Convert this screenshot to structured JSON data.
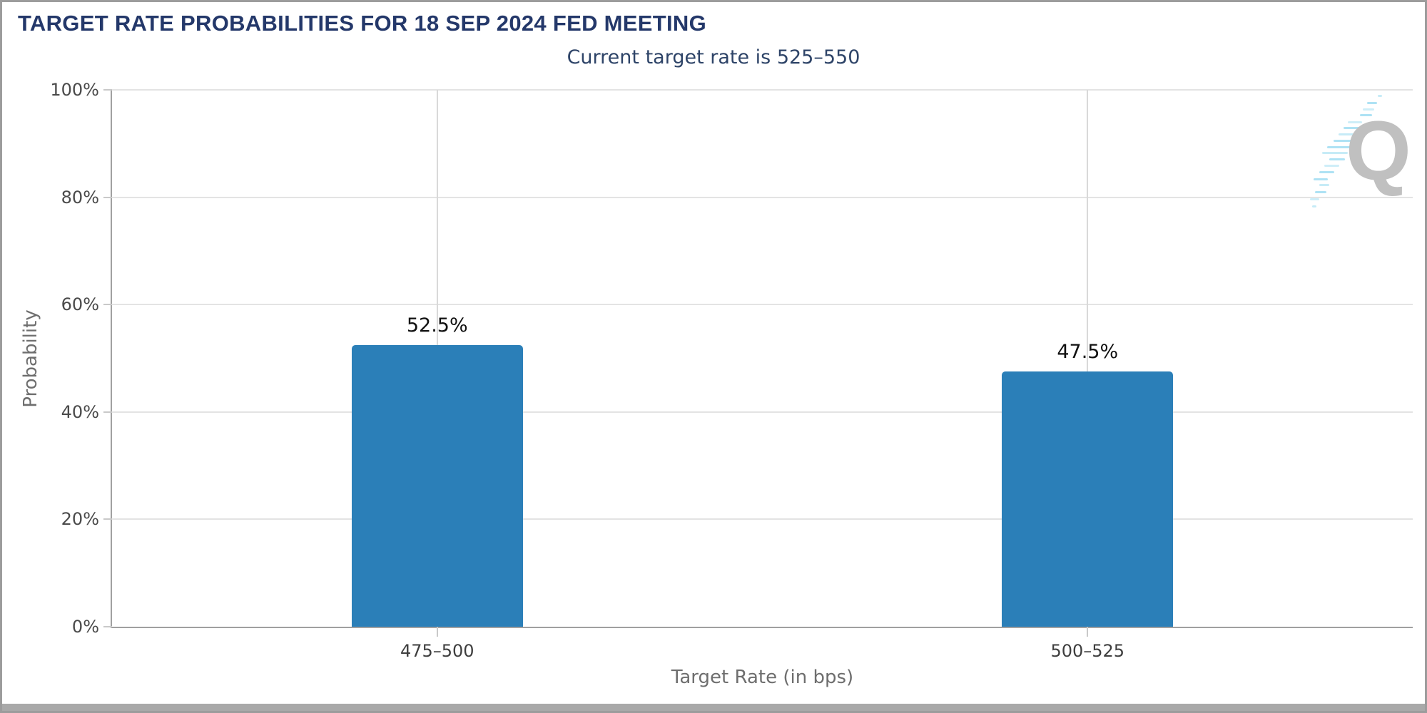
{
  "header": {
    "title": "TARGET RATE PROBABILITIES FOR 18 SEP 2024 FED MEETING"
  },
  "chart_data": {
    "type": "bar",
    "title": "Current target rate is 525–550",
    "categories": [
      "475–500",
      "500–525"
    ],
    "values": [
      52.5,
      47.5
    ],
    "value_labels": [
      "52.5%",
      "47.5%"
    ],
    "xlabel": "Target Rate (in bps)",
    "ylabel": "Probability",
    "ylim": [
      0,
      100
    ],
    "yticks": [
      {
        "label": "100%",
        "value": 100
      },
      {
        "label": "80%",
        "value": 80
      },
      {
        "label": "60%",
        "value": 60
      },
      {
        "label": "40%",
        "value": 40
      },
      {
        "label": "20%",
        "value": 20
      },
      {
        "label": "0%",
        "value": 0
      }
    ],
    "grid": true,
    "legend": "none",
    "bar_color": "#2b7fb8"
  },
  "watermark": {
    "letter": "Q"
  },
  "colors": {
    "bar": "#2b7fb8",
    "title": "#24386a",
    "subtitle": "#2e4468",
    "axis": "#a0a0a0",
    "grid": "#e3e3e3",
    "value_label": "#101010",
    "watermark_q": "#c0c0c0",
    "watermark_dash": "#aee2f4"
  }
}
